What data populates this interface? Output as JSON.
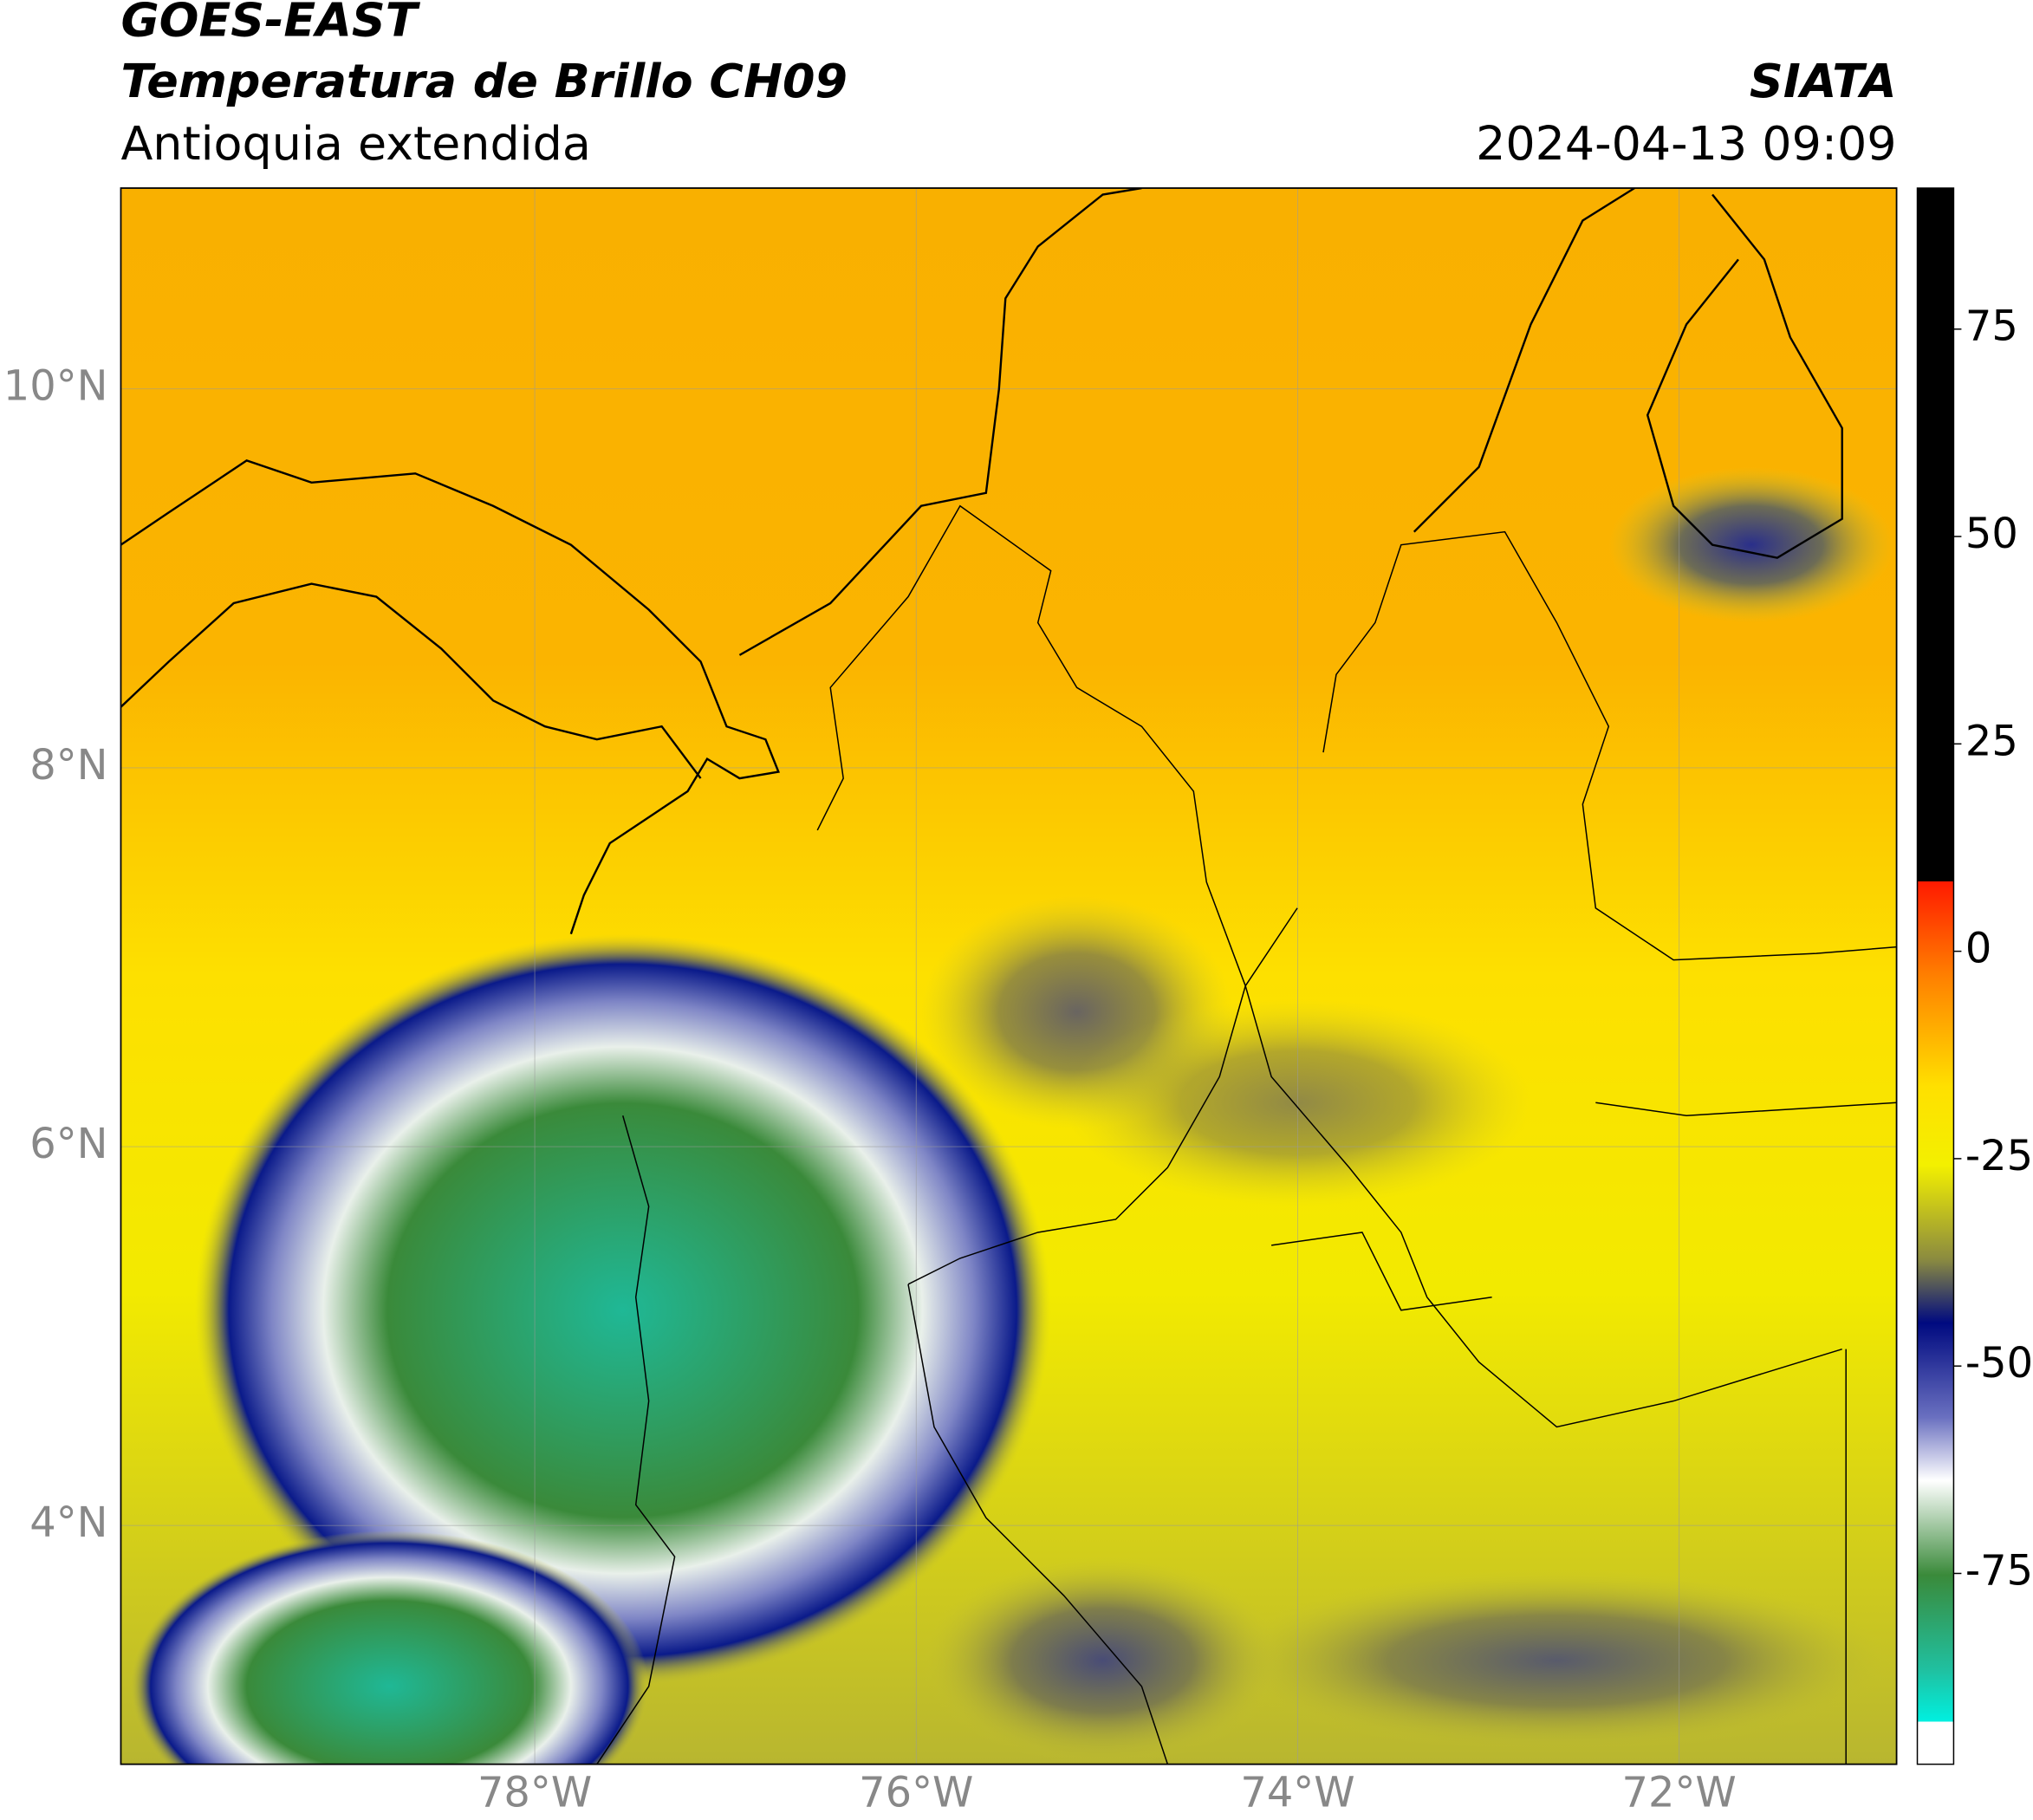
{
  "header": {
    "title": "GOES-EAST",
    "subtitle": "Temperatura de Brillo CH09",
    "region": "Antioquia extendida",
    "source": "SIATA",
    "datetime": "2024-04-13 09:09"
  },
  "map": {
    "lonlim": [
      -80.17,
      -70.86
    ],
    "latlim": [
      2.74,
      11.06
    ],
    "lon_ticks": [
      {
        "value": -78,
        "label": "78°W"
      },
      {
        "value": -76,
        "label": "76°W"
      },
      {
        "value": -74,
        "label": "74°W"
      },
      {
        "value": -72,
        "label": "72°W"
      }
    ],
    "lat_ticks": [
      {
        "value": 10,
        "label": "10°N"
      },
      {
        "value": 8,
        "label": "8°N"
      },
      {
        "value": 6,
        "label": "6°N"
      },
      {
        "value": 4,
        "label": "4°N"
      }
    ]
  },
  "colorbar": {
    "lim": [
      -98,
      92
    ],
    "ticks": [
      75,
      50,
      25,
      0,
      -25,
      -50,
      -75
    ]
  }
}
